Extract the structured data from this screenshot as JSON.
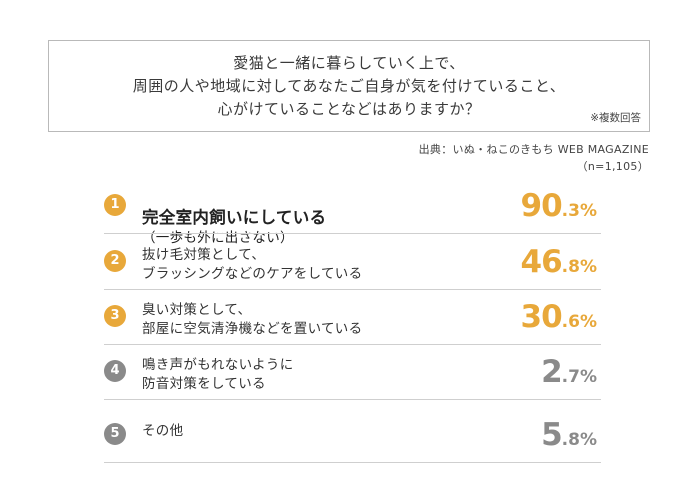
{
  "question": {
    "text": "愛猫と一緒に暮らしていく上で、\n周囲の人や地域に対してあなたご自身が気を付けていること、\n心がけていることなどはありますか？",
    "note": "※複数回答"
  },
  "source": {
    "text": "出典：いぬ・ねこのきもち WEB MAGAZINE",
    "sample": "（n=1,105）"
  },
  "colors": {
    "accent": "#e8a83a",
    "muted": "#8a8a8a",
    "divider": "#cfcfcf",
    "border": "#b9b9b9"
  },
  "chart_data": {
    "type": "table",
    "unit": "%",
    "items": [
      {
        "rank": "1",
        "label": "完全室内飼いにしている",
        "sub": "（一歩も外に出さない）",
        "int": "90",
        "dec": ".3%",
        "value": 90.3,
        "highlight": true
      },
      {
        "rank": "2",
        "label": "抜け毛対策として、\nブラッシングなどのケアをしている",
        "int": "46",
        "dec": ".8%",
        "value": 46.8,
        "highlight": true
      },
      {
        "rank": "3",
        "label": "臭い対策として、\n部屋に空気清浄機などを置いている",
        "int": "30",
        "dec": ".6%",
        "value": 30.6,
        "highlight": true
      },
      {
        "rank": "4",
        "label": "鳴き声がもれないように\n防音対策をしている",
        "int": "2",
        "dec": ".7%",
        "value": 2.7,
        "highlight": false
      },
      {
        "rank": "5",
        "label": "その他",
        "int": "5",
        "dec": ".8%",
        "value": 5.8,
        "highlight": false
      }
    ]
  }
}
